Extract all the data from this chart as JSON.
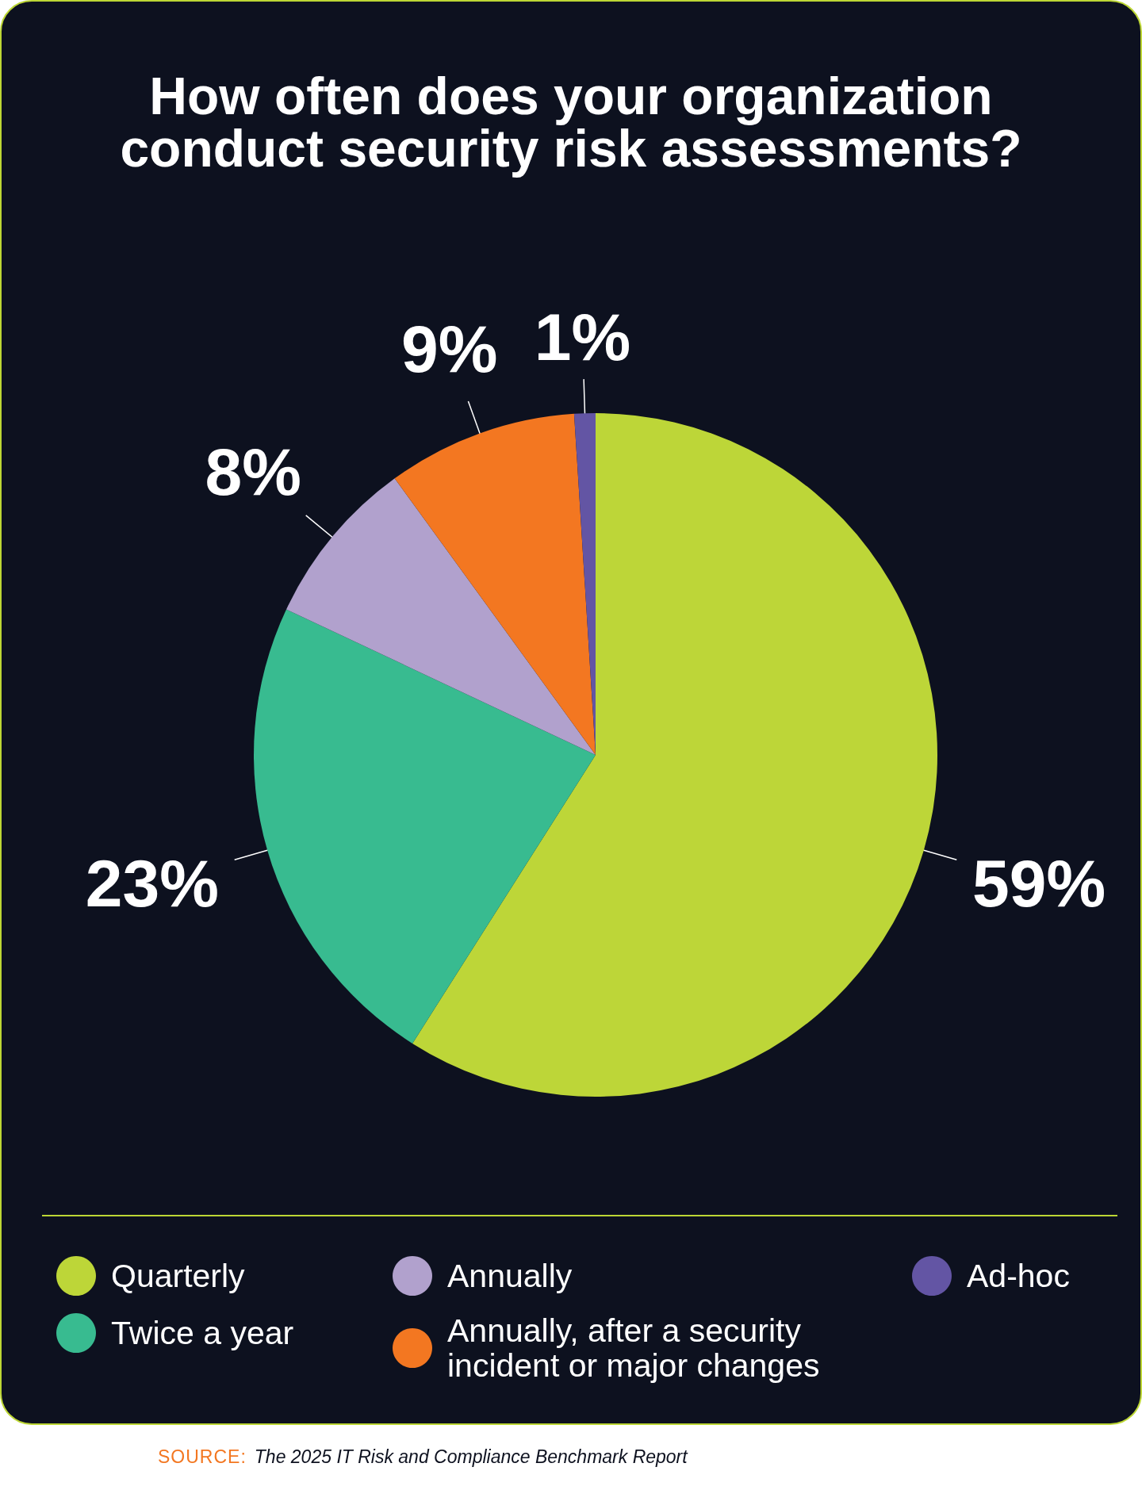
{
  "chart_data": {
    "type": "pie",
    "title": "How often does your organization conduct security risk assessments?",
    "categories": [
      "Quarterly",
      "Twice a year",
      "Annually",
      "Annually, after a security incident or major changes",
      "Ad-hoc"
    ],
    "values": [
      59,
      23,
      8,
      9,
      1
    ],
    "colors": [
      "#bdd638",
      "#38bb90",
      "#b1a1cd",
      "#f37721",
      "#6355a4"
    ],
    "value_labels": [
      "59%",
      "23%",
      "8%",
      "9%",
      "1%"
    ],
    "legend": "bottom",
    "annotations": [
      "SOURCE:",
      "The 2025 IT Risk and Compliance Benchmark Report"
    ]
  }
}
